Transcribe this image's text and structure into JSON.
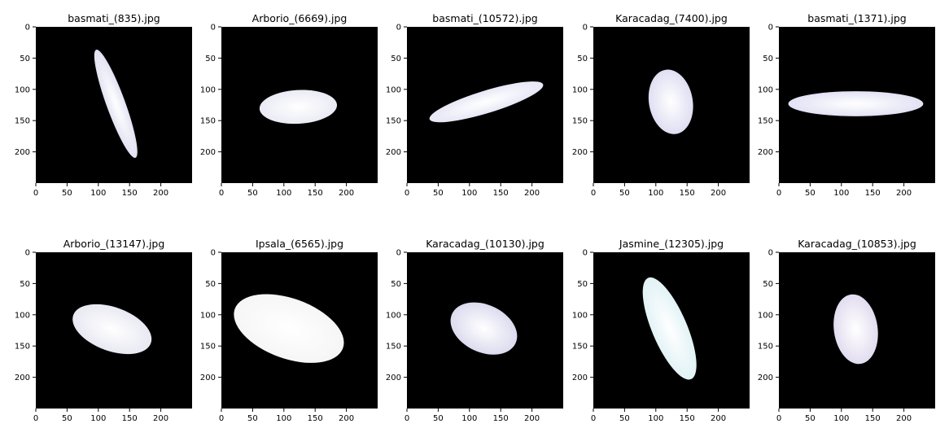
{
  "figure": {
    "background": "#ffffff",
    "axes_background": "#000000",
    "xticks": [
      0,
      50,
      100,
      150,
      200
    ],
    "yticks": [
      0,
      50,
      100,
      150,
      200
    ]
  },
  "chart_data": [
    {
      "type": "image",
      "title": "basmati_(835).jpg",
      "xlim": [
        0,
        250
      ],
      "ylim": [
        250,
        0
      ],
      "xticks": [
        0,
        50,
        100,
        150,
        200
      ],
      "yticks": [
        0,
        50,
        100,
        150,
        200
      ],
      "grain": {
        "cx": 128,
        "cy": 123,
        "rx": 92,
        "ry": 15,
        "angle": 70,
        "color": "#dcdcf0"
      }
    },
    {
      "type": "image",
      "title": "Arborio_(6669).jpg",
      "xlim": [
        0,
        250
      ],
      "ylim": [
        250,
        0
      ],
      "xticks": [
        0,
        50,
        100,
        150,
        200
      ],
      "yticks": [
        0,
        50,
        100,
        150,
        200
      ],
      "grain": {
        "cx": 123,
        "cy": 128,
        "rx": 62,
        "ry": 27,
        "angle": -3,
        "color": "#e6e6f2"
      }
    },
    {
      "type": "image",
      "title": "basmati_(10572).jpg",
      "xlim": [
        0,
        250
      ],
      "ylim": [
        250,
        0
      ],
      "xticks": [
        0,
        50,
        100,
        150,
        200
      ],
      "yticks": [
        0,
        50,
        100,
        150,
        200
      ],
      "grain": {
        "cx": 127,
        "cy": 120,
        "rx": 95,
        "ry": 18,
        "angle": -17,
        "color": "#e2e2f4"
      }
    },
    {
      "type": "image",
      "title": "Karacadag_(7400).jpg",
      "xlim": [
        0,
        250
      ],
      "ylim": [
        250,
        0
      ],
      "xticks": [
        0,
        50,
        100,
        150,
        200
      ],
      "yticks": [
        0,
        50,
        100,
        150,
        200
      ],
      "grain": {
        "cx": 124,
        "cy": 120,
        "rx": 52,
        "ry": 35,
        "angle": 80,
        "color": "#d8d8f0"
      }
    },
    {
      "type": "image",
      "title": "basmati_(1371).jpg",
      "xlim": [
        0,
        250
      ],
      "ylim": [
        250,
        0
      ],
      "xticks": [
        0,
        50,
        100,
        150,
        200
      ],
      "yticks": [
        0,
        50,
        100,
        150,
        200
      ],
      "grain": {
        "cx": 123,
        "cy": 123,
        "rx": 108,
        "ry": 20,
        "angle": 0,
        "color": "#dcdcf2"
      }
    },
    {
      "type": "image",
      "title": "Arborio_(13147).jpg",
      "xlim": [
        0,
        250
      ],
      "ylim": [
        250,
        0
      ],
      "xticks": [
        0,
        50,
        100,
        150,
        200
      ],
      "yticks": [
        0,
        50,
        100,
        150,
        200
      ],
      "grain": {
        "cx": 122,
        "cy": 123,
        "rx": 66,
        "ry": 35,
        "angle": 20,
        "color": "#e4e4f0"
      }
    },
    {
      "type": "image",
      "title": "Ipsala_(6565).jpg",
      "xlim": [
        0,
        250
      ],
      "ylim": [
        250,
        0
      ],
      "xticks": [
        0,
        50,
        100,
        150,
        200
      ],
      "yticks": [
        0,
        50,
        100,
        150,
        200
      ],
      "grain": {
        "cx": 108,
        "cy": 122,
        "rx": 92,
        "ry": 48,
        "angle": 20,
        "color": "#f4f4f4"
      }
    },
    {
      "type": "image",
      "title": "Karacadag_(10130).jpg",
      "xlim": [
        0,
        250
      ],
      "ylim": [
        250,
        0
      ],
      "xticks": [
        0,
        50,
        100,
        150,
        200
      ],
      "yticks": [
        0,
        50,
        100,
        150,
        200
      ],
      "grain": {
        "cx": 123,
        "cy": 122,
        "rx": 56,
        "ry": 38,
        "angle": 25,
        "color": "#d4d4ec"
      }
    },
    {
      "type": "image",
      "title": "Jasmine_(12305).jpg",
      "xlim": [
        0,
        250
      ],
      "ylim": [
        250,
        0
      ],
      "xticks": [
        0,
        50,
        100,
        150,
        200
      ],
      "yticks": [
        0,
        50,
        100,
        150,
        200
      ],
      "grain": {
        "cx": 122,
        "cy": 122,
        "rx": 88,
        "ry": 28,
        "angle": 67,
        "color": "#dcf0f4"
      }
    },
    {
      "type": "image",
      "title": "Karacadag_(10853).jpg",
      "xlim": [
        0,
        250
      ],
      "ylim": [
        250,
        0
      ],
      "xticks": [
        0,
        50,
        100,
        150,
        200
      ],
      "yticks": [
        0,
        50,
        100,
        150,
        200
      ],
      "grain": {
        "cx": 123,
        "cy": 123,
        "rx": 56,
        "ry": 35,
        "angle": 82,
        "color": "#dcd6ec"
      }
    }
  ]
}
